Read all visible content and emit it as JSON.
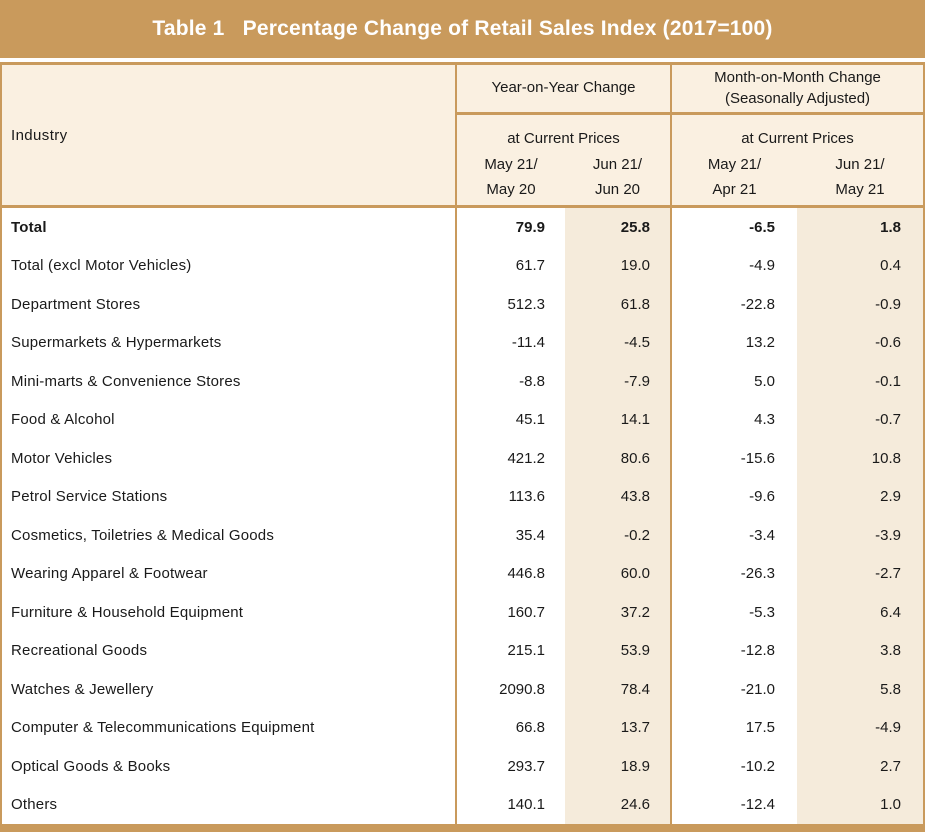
{
  "title_bar": {
    "text": "Table 1   Percentage Change of Retail Sales Index (2017=100)"
  },
  "header": {
    "industry_label": "Industry",
    "groups": [
      {
        "label_line1": "Year-on-Year Change",
        "label_line2": "",
        "sub_label": "at Current Prices",
        "columns": [
          {
            "line1": "May 21/",
            "line2": "May 20"
          },
          {
            "line1": "Jun 21/",
            "line2": "Jun 20"
          }
        ]
      },
      {
        "label_line1": "Month-on-Month Change",
        "label_line2": "(Seasonally Adjusted)",
        "sub_label": "at Current Prices",
        "columns": [
          {
            "line1": "May 21/",
            "line2": "Apr 21"
          },
          {
            "line1": "Jun 21/",
            "line2": "May 21"
          }
        ]
      }
    ]
  },
  "colors": {
    "tan_accent": "#C99A5C",
    "header_background": "#FAF0E1",
    "shaded_column": "#F5EBDB",
    "title_text": "#FFFFFF",
    "body_text": "#1A1A1A"
  },
  "chart_data": {
    "type": "table",
    "title": "Table 1   Percentage Change of Retail Sales Index (2017=100)",
    "row_header": "Industry",
    "column_group_headers": [
      {
        "title": "Year-on-Year Change",
        "subtitle": "at Current Prices",
        "columns": [
          "May 21/ May 20",
          "Jun 21/ Jun 20"
        ]
      },
      {
        "title": "Month-on-Month Change (Seasonally Adjusted)",
        "subtitle": "at Current Prices",
        "columns": [
          "May 21/ Apr 21",
          "Jun 21/ May 21"
        ]
      }
    ],
    "rows": [
      {
        "industry": "Total",
        "bold": true,
        "values": [
          79.9,
          25.8,
          -6.5,
          1.8
        ]
      },
      {
        "industry": "Total (excl Motor Vehicles)",
        "bold": false,
        "values": [
          61.7,
          19.0,
          -4.9,
          0.4
        ]
      },
      {
        "industry": "Department Stores",
        "bold": false,
        "values": [
          512.3,
          61.8,
          -22.8,
          -0.9
        ]
      },
      {
        "industry": "Supermarkets & Hypermarkets",
        "bold": false,
        "values": [
          -11.4,
          -4.5,
          13.2,
          -0.6
        ]
      },
      {
        "industry": "Mini-marts & Convenience Stores",
        "bold": false,
        "values": [
          -8.8,
          -7.9,
          5.0,
          -0.1
        ]
      },
      {
        "industry": "Food & Alcohol",
        "bold": false,
        "values": [
          45.1,
          14.1,
          4.3,
          -0.7
        ]
      },
      {
        "industry": "Motor Vehicles",
        "bold": false,
        "values": [
          421.2,
          80.6,
          -15.6,
          10.8
        ]
      },
      {
        "industry": "Petrol Service Stations",
        "bold": false,
        "values": [
          113.6,
          43.8,
          -9.6,
          2.9
        ]
      },
      {
        "industry": "Cosmetics, Toiletries & Medical Goods",
        "bold": false,
        "values": [
          35.4,
          -0.2,
          -3.4,
          -3.9
        ]
      },
      {
        "industry": "Wearing Apparel & Footwear",
        "bold": false,
        "values": [
          446.8,
          60.0,
          -26.3,
          -2.7
        ]
      },
      {
        "industry": "Furniture & Household Equipment",
        "bold": false,
        "values": [
          160.7,
          37.2,
          -5.3,
          6.4
        ]
      },
      {
        "industry": "Recreational Goods",
        "bold": false,
        "values": [
          215.1,
          53.9,
          -12.8,
          3.8
        ]
      },
      {
        "industry": "Watches & Jewellery",
        "bold": false,
        "values": [
          2090.8,
          78.4,
          -21.0,
          5.8
        ]
      },
      {
        "industry": "Computer & Telecommunications Equipment",
        "bold": false,
        "values": [
          66.8,
          13.7,
          17.5,
          -4.9
        ]
      },
      {
        "industry": "Optical Goods & Books",
        "bold": false,
        "values": [
          293.7,
          18.9,
          -10.2,
          2.7
        ]
      },
      {
        "industry": "Others",
        "bold": false,
        "values": [
          140.1,
          24.6,
          -12.4,
          1.0
        ]
      }
    ]
  }
}
